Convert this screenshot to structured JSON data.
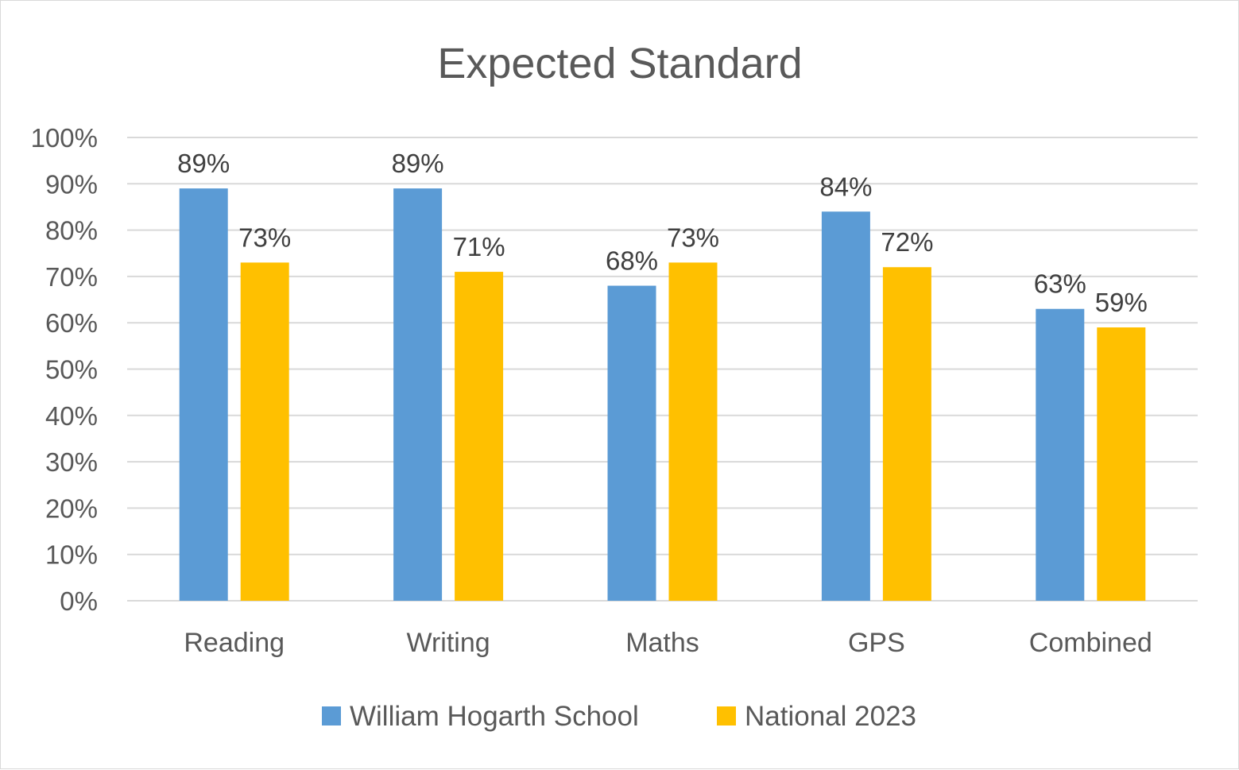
{
  "chart_data": {
    "type": "bar",
    "title": "Expected Standard",
    "categories": [
      "Reading",
      "Writing",
      "Maths",
      "GPS",
      "Combined"
    ],
    "series": [
      {
        "name": "William Hogarth School",
        "color": "#5b9bd5",
        "values": [
          89,
          89,
          68,
          84,
          63
        ],
        "labels": [
          "89%",
          "89%",
          "68%",
          "84%",
          "63%"
        ]
      },
      {
        "name": "National 2023",
        "color": "#ffc000",
        "values": [
          73,
          71,
          73,
          72,
          59
        ],
        "labels": [
          "73%",
          "71%",
          "73%",
          "72%",
          "59%"
        ]
      }
    ],
    "ylim": [
      0,
      100
    ],
    "y_ticks": [
      0,
      10,
      20,
      30,
      40,
      50,
      60,
      70,
      80,
      90,
      100
    ],
    "y_tick_labels": [
      "0%",
      "10%",
      "20%",
      "30%",
      "40%",
      "50%",
      "60%",
      "70%",
      "80%",
      "90%",
      "100%"
    ],
    "xlabel": "",
    "ylabel": "",
    "grid": true,
    "legend_position": "bottom"
  }
}
